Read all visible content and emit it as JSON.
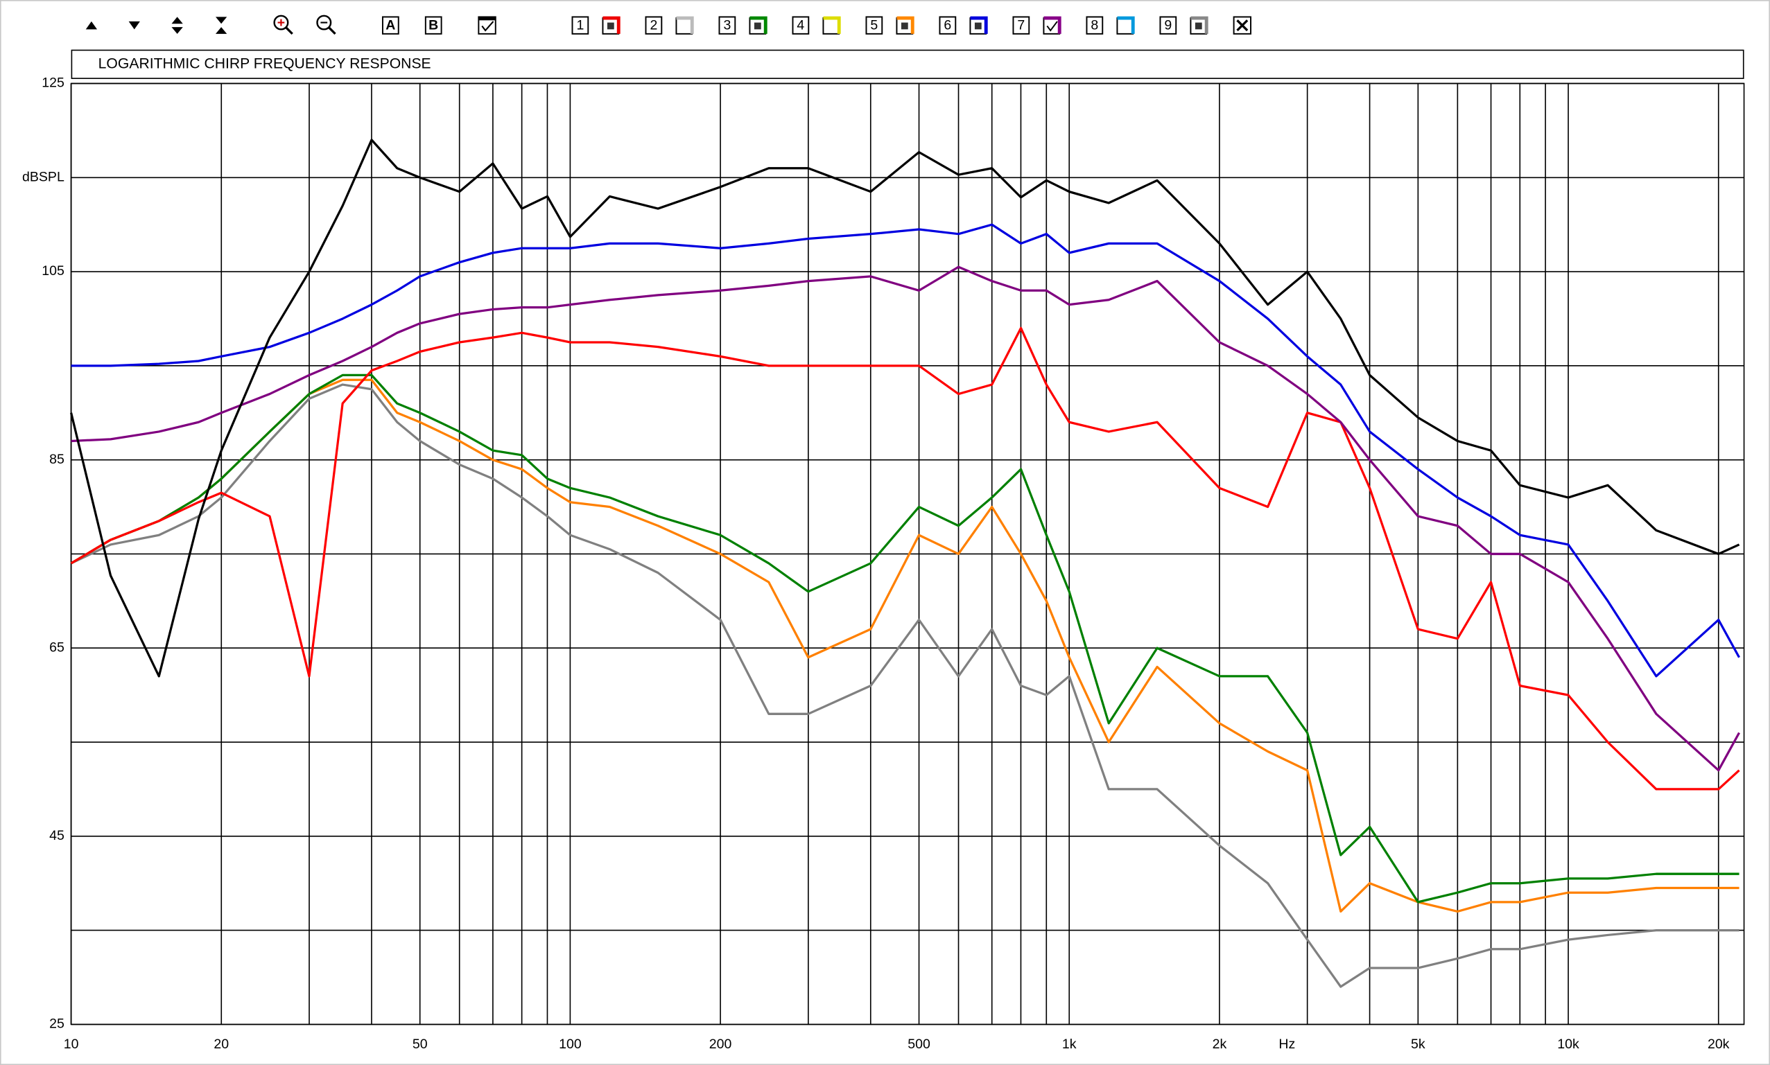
{
  "toolbar": {
    "buttons": [
      "A",
      "B"
    ],
    "slots": [
      "1",
      "2",
      "3",
      "4",
      "5",
      "6",
      "7",
      "8",
      "9"
    ]
  },
  "chart_data": {
    "type": "line",
    "title": "LOGARITHMIC CHIRP FREQUENCY RESPONSE",
    "log_x": true,
    "grid": true,
    "xlim": [
      10,
      22500
    ],
    "ylim": [
      25,
      125
    ],
    "xticks": [
      10,
      20,
      50,
      100,
      200,
      500,
      {
        "value": 1000,
        "label": "1k"
      },
      {
        "value": 2000,
        "label": "2k"
      },
      {
        "value": 3000,
        "label": "Hz"
      },
      {
        "value": 5000,
        "label": "5k"
      },
      {
        "value": 10000,
        "label": "10k"
      },
      {
        "value": 20000,
        "label": "20k"
      }
    ],
    "xminor": [
      30,
      40,
      60,
      70,
      80,
      90,
      300,
      400,
      600,
      700,
      800,
      900,
      4000,
      6000,
      7000,
      8000,
      9000
    ],
    "yticks": [
      25,
      45,
      65,
      85,
      105,
      {
        "value": 115,
        "label": "dBSPL"
      },
      125
    ],
    "yminor": [
      35,
      55,
      75,
      95
    ],
    "x": [
      10,
      12,
      15,
      18,
      20,
      25,
      30,
      35,
      40,
      45,
      50,
      60,
      70,
      80,
      90,
      100,
      120,
      150,
      200,
      250,
      300,
      400,
      500,
      600,
      700,
      800,
      900,
      1000,
      1200,
      1500,
      2000,
      2500,
      3000,
      3500,
      4000,
      5000,
      6000,
      7000,
      8000,
      10000,
      12000,
      15000,
      20000,
      22000
    ],
    "series": [
      {
        "color": "#808080",
        "values": [
          74,
          76,
          77,
          79,
          81,
          87,
          91.5,
          93,
          92.5,
          89,
          87,
          84.5,
          83,
          81,
          79,
          77,
          75.5,
          73,
          68,
          58,
          58,
          61,
          68,
          62,
          67,
          61,
          60,
          62,
          50,
          50,
          44,
          40,
          34,
          29,
          31,
          31,
          32,
          33,
          33,
          34,
          34.5,
          35,
          35,
          35
        ]
      },
      {
        "color": "#ff8000",
        "values": [
          74,
          76.5,
          78.5,
          81,
          83,
          88,
          92,
          93.5,
          93.5,
          90,
          89,
          87,
          85,
          84,
          82,
          80.5,
          80,
          78,
          75,
          72,
          64,
          67,
          77,
          75,
          80,
          75,
          70,
          64,
          55,
          63,
          57,
          54,
          52,
          37,
          40,
          38,
          37,
          38,
          38,
          39,
          39,
          39.5,
          39.5,
          39.5
        ]
      },
      {
        "color": "#008000",
        "values": [
          74,
          76.5,
          78.5,
          81,
          83,
          88,
          92,
          94,
          94,
          91,
          90,
          88,
          86,
          85.5,
          83,
          82,
          81,
          79,
          77,
          74,
          71,
          74,
          80,
          78,
          81,
          84,
          77,
          71,
          57,
          65,
          62,
          62,
          56,
          43,
          46,
          38,
          39,
          40,
          40,
          40.5,
          40.5,
          41,
          41,
          41
        ]
      },
      {
        "color": "#ff0000",
        "values": [
          74,
          76.5,
          78.5,
          80.5,
          81.5,
          79,
          62,
          91,
          94.5,
          95.5,
          96.5,
          97.5,
          98,
          98.5,
          98,
          97.5,
          97.5,
          97,
          96,
          95,
          95,
          95,
          95,
          92,
          93,
          99,
          93,
          89,
          88,
          89,
          82,
          80,
          90,
          89,
          82,
          67,
          66,
          72,
          61,
          60,
          55,
          50,
          50,
          52
        ]
      },
      {
        "color": "#800080",
        "values": [
          87,
          87.2,
          88,
          89,
          90,
          92,
          94,
          95.5,
          97,
          98.5,
          99.5,
          100.5,
          101,
          101.2,
          101.2,
          101.5,
          102,
          102.5,
          103,
          103.5,
          104,
          104.5,
          103,
          105.5,
          104,
          103,
          103,
          101.5,
          102,
          104,
          97.5,
          95,
          92,
          89,
          85,
          79,
          78,
          75,
          75,
          72,
          66,
          58,
          52,
          56
        ]
      },
      {
        "color": "#0000e0",
        "values": [
          95,
          95,
          95.2,
          95.5,
          96,
          97,
          98.5,
          100,
          101.5,
          103,
          104.5,
          106,
          107,
          107.5,
          107.5,
          107.5,
          108,
          108,
          107.5,
          108,
          108.5,
          109,
          109.5,
          109,
          110,
          108,
          109,
          107,
          108,
          108,
          104,
          100,
          96,
          93,
          88,
          84,
          81,
          79,
          77,
          76,
          70,
          62,
          68,
          64
        ]
      },
      {
        "color": "#000000",
        "values": [
          90,
          72.7,
          62,
          78.7,
          86,
          98,
          105,
          112,
          119,
          116,
          115,
          113.5,
          116.5,
          111.7,
          113,
          108.7,
          113,
          111.7,
          114,
          116,
          116,
          113.5,
          117.7,
          115.3,
          116,
          112.9,
          114.7,
          113.5,
          112.3,
          114.7,
          108,
          101.5,
          105,
          100,
          94,
          89.5,
          87,
          86,
          82.3,
          81,
          82.3,
          77.5,
          75,
          76
        ]
      }
    ]
  }
}
